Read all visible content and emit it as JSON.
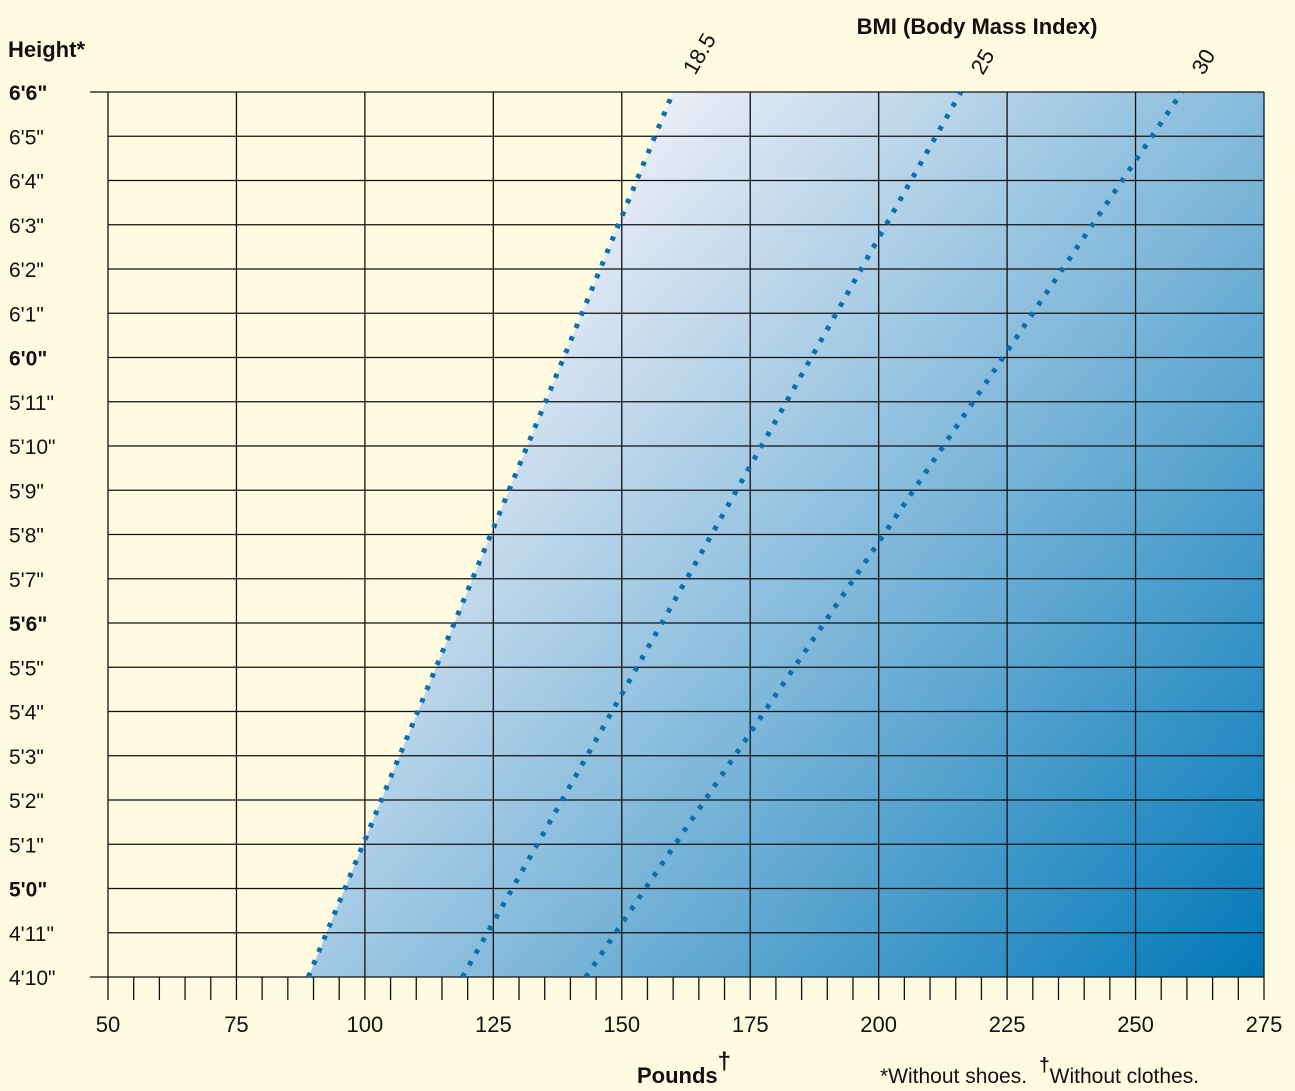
{
  "chart_data": {
    "type": "line",
    "title": "BMI (Body Mass Index)",
    "ylabel": "Height*",
    "xlabel": "Pounds",
    "xlabel_mark": "†",
    "footnote_shoes": "*Without shoes.",
    "footnote_mark": "†",
    "footnote_clothes": "Without clothes.",
    "xlim": [
      50,
      275
    ],
    "x_major_ticks": [
      50,
      75,
      100,
      125,
      150,
      175,
      200,
      225,
      250,
      275
    ],
    "x_minor_step": 5,
    "y_heights_in": [
      78,
      77,
      76,
      75,
      74,
      73,
      72,
      71,
      70,
      69,
      68,
      67,
      66,
      65,
      64,
      63,
      62,
      61,
      60,
      59,
      58
    ],
    "y_tick_labels": [
      "6'6\"",
      "6'5\"",
      "6'4\"",
      "6'3\"",
      "6'2\"",
      "6'1\"",
      "6'0\"",
      "5'11\"",
      "5'10\"",
      "5'9\"",
      "5'8\"",
      "5'7\"",
      "5'6\"",
      "5'5\"",
      "5'4\"",
      "5'3\"",
      "5'2\"",
      "5'1\"",
      "5'0\"",
      "4'11\"",
      "4'10\""
    ],
    "y_bold_labels": [
      "6'6\"",
      "6'0\"",
      "5'6\"",
      "5'0\""
    ],
    "series": [
      {
        "name": "18.5",
        "points": [
          [
            89,
            58
          ],
          [
            160,
            78
          ]
        ]
      },
      {
        "name": "25",
        "points": [
          [
            119,
            58
          ],
          [
            216,
            78
          ]
        ]
      },
      {
        "name": "30",
        "points": [
          [
            143,
            58
          ],
          [
            259,
            78
          ]
        ]
      }
    ],
    "grid": true,
    "colors": {
      "background": "#fffbe0",
      "gradient_light": "#e8ecf6",
      "gradient_dark": "#0078b8",
      "bmi_line": "#0a6fb0",
      "grid": "#111111"
    }
  }
}
